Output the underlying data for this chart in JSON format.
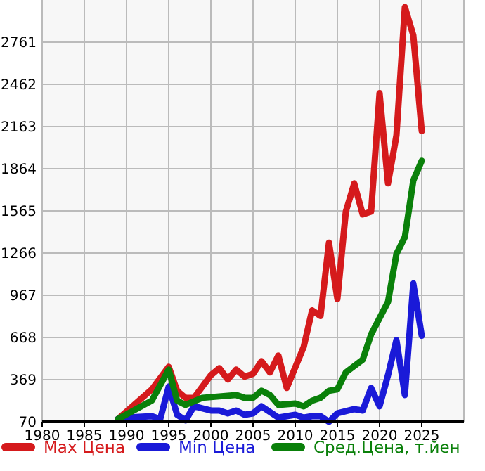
{
  "chart_data": {
    "type": "line",
    "xlim": [
      1980,
      2030
    ],
    "xticks": [
      1980,
      1985,
      1990,
      1995,
      2000,
      2005,
      2010,
      2015,
      2020,
      2025
    ],
    "ylim": [
      70,
      3060
    ],
    "yticks": [
      70,
      369,
      668,
      967,
      1266,
      1565,
      1864,
      2163,
      2462,
      2761
    ],
    "grid": true,
    "legend": "bottom",
    "series": [
      {
        "name": "Max Цена",
        "color": "#d51a1c",
        "x": [
          1989,
          1993,
          1995,
          1996,
          1997,
          1998,
          2000,
          2001,
          2002,
          2003,
          2004,
          2005,
          2006,
          2007,
          2008,
          2009,
          2011,
          2012,
          2013,
          2014,
          2015,
          2016,
          2017,
          2018,
          2019,
          2020,
          2021,
          2022,
          2023,
          2024,
          2025
        ],
        "values": [
          90,
          300,
          460,
          290,
          240,
          240,
          400,
          450,
          370,
          440,
          390,
          410,
          500,
          420,
          540,
          310,
          600,
          860,
          820,
          1340,
          940,
          1560,
          1760,
          1540,
          1560,
          2400,
          1760,
          2100,
          3010,
          2810,
          2130
        ]
      },
      {
        "name": "Min Цена",
        "color": "#1a1ad8",
        "x": [
          1989,
          1990,
          1993,
          1994,
          1995,
          1996,
          1997,
          1998,
          2000,
          2001,
          2002,
          2003,
          2004,
          2005,
          2006,
          2007,
          2008,
          2010,
          2011,
          2012,
          2013,
          2014,
          2015,
          2017,
          2018,
          2019,
          2020,
          2021,
          2022,
          2023,
          2024,
          2025
        ],
        "values": [
          90,
          100,
          110,
          90,
          320,
          120,
          80,
          180,
          150,
          150,
          130,
          150,
          120,
          130,
          180,
          140,
          100,
          120,
          100,
          110,
          110,
          70,
          130,
          160,
          150,
          310,
          180,
          400,
          650,
          260,
          1050,
          680
        ]
      },
      {
        "name": "Сред.Цена, т.йен",
        "color": "#0a800a",
        "x": [
          1989,
          1993,
          1995,
          1996,
          1997,
          1999,
          2001,
          2003,
          2004,
          2005,
          2006,
          2007,
          2008,
          2010,
          2011,
          2012,
          2013,
          2014,
          2015,
          2016,
          2018,
          2019,
          2021,
          2022,
          2023,
          2024,
          2025
        ],
        "values": [
          90,
          220,
          440,
          220,
          190,
          240,
          250,
          260,
          240,
          240,
          290,
          260,
          190,
          200,
          180,
          220,
          240,
          290,
          300,
          420,
          510,
          690,
          920,
          1260,
          1380,
          1780,
          1920
        ]
      }
    ]
  }
}
